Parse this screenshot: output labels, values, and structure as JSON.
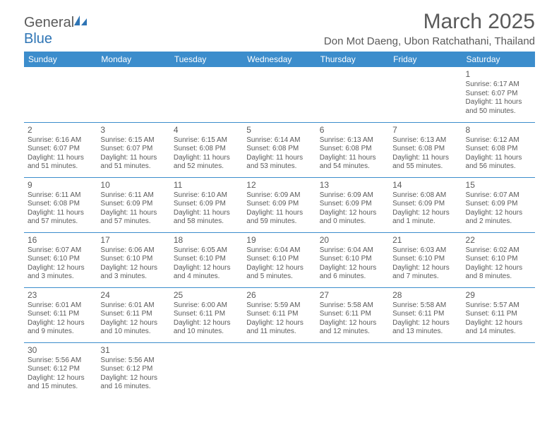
{
  "logo": {
    "general": "General",
    "blue": "Blue"
  },
  "title": "March 2025",
  "location": "Don Mot Daeng, Ubon Ratchathani, Thailand",
  "colors": {
    "header_bg": "#3c8dcc",
    "header_text": "#ffffff",
    "text": "#5a5a5a",
    "border": "#3c8dcc",
    "logo_blue": "#2f75b5"
  },
  "weekdays": [
    "Sunday",
    "Monday",
    "Tuesday",
    "Wednesday",
    "Thursday",
    "Friday",
    "Saturday"
  ],
  "weeks": [
    [
      null,
      null,
      null,
      null,
      null,
      null,
      {
        "n": "1",
        "sr": "Sunrise: 6:17 AM",
        "ss": "Sunset: 6:07 PM",
        "dl": "Daylight: 11 hours and 50 minutes."
      }
    ],
    [
      {
        "n": "2",
        "sr": "Sunrise: 6:16 AM",
        "ss": "Sunset: 6:07 PM",
        "dl": "Daylight: 11 hours and 51 minutes."
      },
      {
        "n": "3",
        "sr": "Sunrise: 6:15 AM",
        "ss": "Sunset: 6:07 PM",
        "dl": "Daylight: 11 hours and 51 minutes."
      },
      {
        "n": "4",
        "sr": "Sunrise: 6:15 AM",
        "ss": "Sunset: 6:08 PM",
        "dl": "Daylight: 11 hours and 52 minutes."
      },
      {
        "n": "5",
        "sr": "Sunrise: 6:14 AM",
        "ss": "Sunset: 6:08 PM",
        "dl": "Daylight: 11 hours and 53 minutes."
      },
      {
        "n": "6",
        "sr": "Sunrise: 6:13 AM",
        "ss": "Sunset: 6:08 PM",
        "dl": "Daylight: 11 hours and 54 minutes."
      },
      {
        "n": "7",
        "sr": "Sunrise: 6:13 AM",
        "ss": "Sunset: 6:08 PM",
        "dl": "Daylight: 11 hours and 55 minutes."
      },
      {
        "n": "8",
        "sr": "Sunrise: 6:12 AM",
        "ss": "Sunset: 6:08 PM",
        "dl": "Daylight: 11 hours and 56 minutes."
      }
    ],
    [
      {
        "n": "9",
        "sr": "Sunrise: 6:11 AM",
        "ss": "Sunset: 6:08 PM",
        "dl": "Daylight: 11 hours and 57 minutes."
      },
      {
        "n": "10",
        "sr": "Sunrise: 6:11 AM",
        "ss": "Sunset: 6:09 PM",
        "dl": "Daylight: 11 hours and 57 minutes."
      },
      {
        "n": "11",
        "sr": "Sunrise: 6:10 AM",
        "ss": "Sunset: 6:09 PM",
        "dl": "Daylight: 11 hours and 58 minutes."
      },
      {
        "n": "12",
        "sr": "Sunrise: 6:09 AM",
        "ss": "Sunset: 6:09 PM",
        "dl": "Daylight: 11 hours and 59 minutes."
      },
      {
        "n": "13",
        "sr": "Sunrise: 6:09 AM",
        "ss": "Sunset: 6:09 PM",
        "dl": "Daylight: 12 hours and 0 minutes."
      },
      {
        "n": "14",
        "sr": "Sunrise: 6:08 AM",
        "ss": "Sunset: 6:09 PM",
        "dl": "Daylight: 12 hours and 1 minute."
      },
      {
        "n": "15",
        "sr": "Sunrise: 6:07 AM",
        "ss": "Sunset: 6:09 PM",
        "dl": "Daylight: 12 hours and 2 minutes."
      }
    ],
    [
      {
        "n": "16",
        "sr": "Sunrise: 6:07 AM",
        "ss": "Sunset: 6:10 PM",
        "dl": "Daylight: 12 hours and 3 minutes."
      },
      {
        "n": "17",
        "sr": "Sunrise: 6:06 AM",
        "ss": "Sunset: 6:10 PM",
        "dl": "Daylight: 12 hours and 3 minutes."
      },
      {
        "n": "18",
        "sr": "Sunrise: 6:05 AM",
        "ss": "Sunset: 6:10 PM",
        "dl": "Daylight: 12 hours and 4 minutes."
      },
      {
        "n": "19",
        "sr": "Sunrise: 6:04 AM",
        "ss": "Sunset: 6:10 PM",
        "dl": "Daylight: 12 hours and 5 minutes."
      },
      {
        "n": "20",
        "sr": "Sunrise: 6:04 AM",
        "ss": "Sunset: 6:10 PM",
        "dl": "Daylight: 12 hours and 6 minutes."
      },
      {
        "n": "21",
        "sr": "Sunrise: 6:03 AM",
        "ss": "Sunset: 6:10 PM",
        "dl": "Daylight: 12 hours and 7 minutes."
      },
      {
        "n": "22",
        "sr": "Sunrise: 6:02 AM",
        "ss": "Sunset: 6:10 PM",
        "dl": "Daylight: 12 hours and 8 minutes."
      }
    ],
    [
      {
        "n": "23",
        "sr": "Sunrise: 6:01 AM",
        "ss": "Sunset: 6:11 PM",
        "dl": "Daylight: 12 hours and 9 minutes."
      },
      {
        "n": "24",
        "sr": "Sunrise: 6:01 AM",
        "ss": "Sunset: 6:11 PM",
        "dl": "Daylight: 12 hours and 10 minutes."
      },
      {
        "n": "25",
        "sr": "Sunrise: 6:00 AM",
        "ss": "Sunset: 6:11 PM",
        "dl": "Daylight: 12 hours and 10 minutes."
      },
      {
        "n": "26",
        "sr": "Sunrise: 5:59 AM",
        "ss": "Sunset: 6:11 PM",
        "dl": "Daylight: 12 hours and 11 minutes."
      },
      {
        "n": "27",
        "sr": "Sunrise: 5:58 AM",
        "ss": "Sunset: 6:11 PM",
        "dl": "Daylight: 12 hours and 12 minutes."
      },
      {
        "n": "28",
        "sr": "Sunrise: 5:58 AM",
        "ss": "Sunset: 6:11 PM",
        "dl": "Daylight: 12 hours and 13 minutes."
      },
      {
        "n": "29",
        "sr": "Sunrise: 5:57 AM",
        "ss": "Sunset: 6:11 PM",
        "dl": "Daylight: 12 hours and 14 minutes."
      }
    ],
    [
      {
        "n": "30",
        "sr": "Sunrise: 5:56 AM",
        "ss": "Sunset: 6:12 PM",
        "dl": "Daylight: 12 hours and 15 minutes."
      },
      {
        "n": "31",
        "sr": "Sunrise: 5:56 AM",
        "ss": "Sunset: 6:12 PM",
        "dl": "Daylight: 12 hours and 16 minutes."
      },
      null,
      null,
      null,
      null,
      null
    ]
  ]
}
